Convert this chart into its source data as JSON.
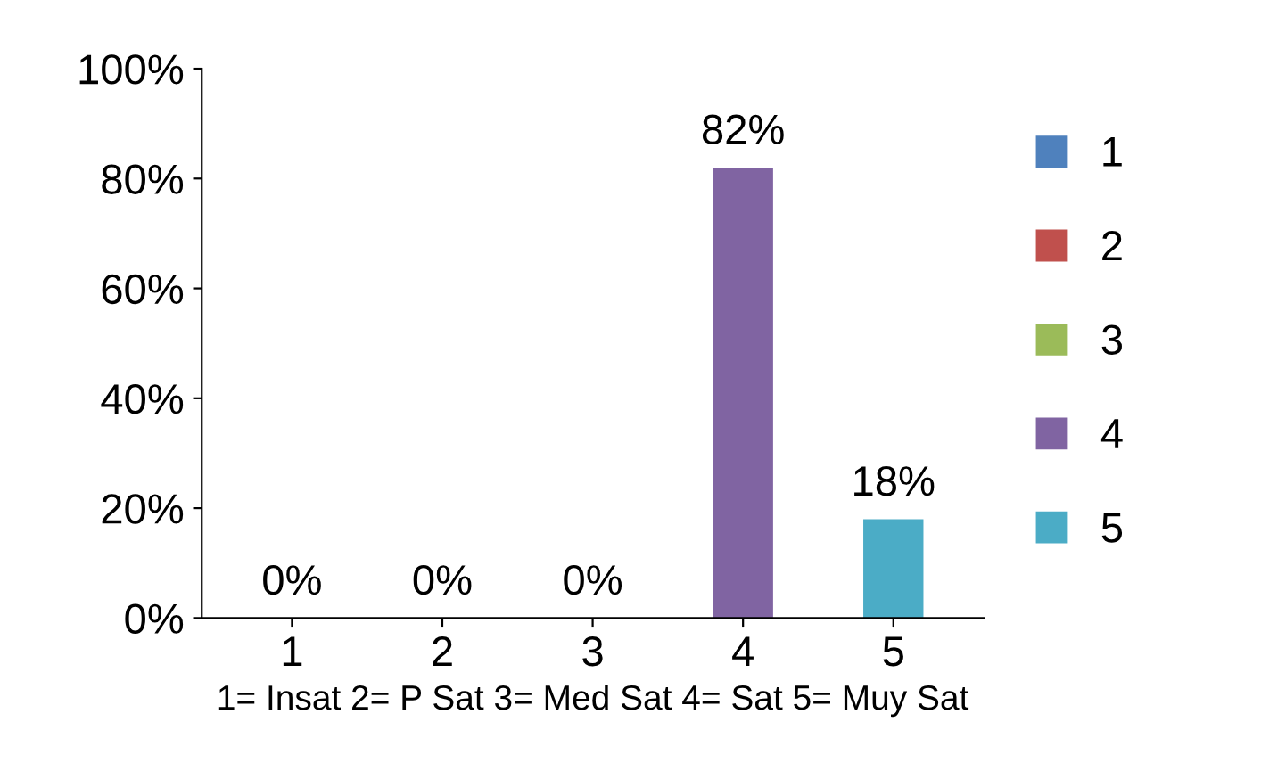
{
  "chart_data": {
    "type": "bar",
    "xlabel": "1= Insat 2= P Sat 3= Med Sat 4= Sat 5= Muy Sat",
    "categories": [
      "1",
      "2",
      "3",
      "4",
      "5"
    ],
    "series": [
      {
        "name": "1",
        "color": "#4f81bd",
        "values": [
          0,
          null,
          null,
          null,
          null
        ],
        "value_labels": [
          "0%",
          null,
          null,
          null,
          null
        ]
      },
      {
        "name": "2",
        "color": "#c0504d",
        "values": [
          null,
          0,
          null,
          null,
          null
        ],
        "value_labels": [
          null,
          "0%",
          null,
          null,
          null
        ]
      },
      {
        "name": "3",
        "color": "#9bbb59",
        "values": [
          null,
          null,
          0,
          null,
          null
        ],
        "value_labels": [
          null,
          null,
          "0%",
          null,
          null
        ]
      },
      {
        "name": "4",
        "color": "#8064a2",
        "values": [
          null,
          null,
          null,
          82,
          null
        ],
        "value_labels": [
          null,
          null,
          null,
          "82%",
          null
        ]
      },
      {
        "name": "5",
        "color": "#4bacc6",
        "values": [
          null,
          null,
          null,
          null,
          18
        ],
        "value_labels": [
          null,
          null,
          null,
          null,
          "18%"
        ]
      }
    ],
    "ylim": [
      0,
      100
    ],
    "yticks": [
      {
        "value": 0,
        "label": "0%"
      },
      {
        "value": 20,
        "label": "20%"
      },
      {
        "value": 40,
        "label": "40%"
      },
      {
        "value": 60,
        "label": "60%"
      },
      {
        "value": 80,
        "label": "80%"
      },
      {
        "value": 100,
        "label": "100%"
      }
    ],
    "grid": false,
    "legend": "right"
  }
}
